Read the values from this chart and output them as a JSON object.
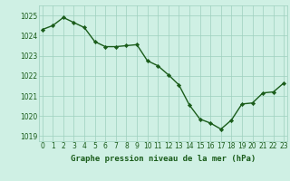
{
  "x": [
    0,
    1,
    2,
    3,
    4,
    5,
    6,
    7,
    8,
    9,
    10,
    11,
    12,
    13,
    14,
    15,
    16,
    17,
    18,
    19,
    20,
    21,
    22,
    23
  ],
  "y": [
    1024.3,
    1024.5,
    1024.9,
    1024.65,
    1024.4,
    1023.7,
    1023.45,
    1023.45,
    1023.5,
    1023.55,
    1022.75,
    1022.5,
    1022.05,
    1021.55,
    1020.55,
    1019.85,
    1019.65,
    1019.35,
    1019.8,
    1020.6,
    1020.65,
    1021.15,
    1021.2,
    1021.65
  ],
  "line_color": "#1a5c1a",
  "marker": "D",
  "marker_size": 2.2,
  "line_width": 1.0,
  "bg_color": "#cff0e4",
  "grid_color": "#9ecfbe",
  "ylabel_ticks": [
    1019,
    1020,
    1021,
    1022,
    1023,
    1024,
    1025
  ],
  "xlabel_ticks": [
    0,
    1,
    2,
    3,
    4,
    5,
    6,
    7,
    8,
    9,
    10,
    11,
    12,
    13,
    14,
    15,
    16,
    17,
    18,
    19,
    20,
    21,
    22,
    23
  ],
  "xlabel_labels": [
    "0",
    "1",
    "2",
    "3",
    "4",
    "5",
    "6",
    "7",
    "8",
    "9",
    "10",
    "11",
    "12",
    "13",
    "14",
    "15",
    "16",
    "17",
    "18",
    "19",
    "20",
    "21",
    "22",
    "23"
  ],
  "ylim": [
    1018.75,
    1025.5
  ],
  "xlim": [
    -0.3,
    23.3
  ],
  "xlabel": "Graphe pression niveau de la mer (hPa)",
  "tick_fontsize": 5.5,
  "label_fontsize": 6.5
}
